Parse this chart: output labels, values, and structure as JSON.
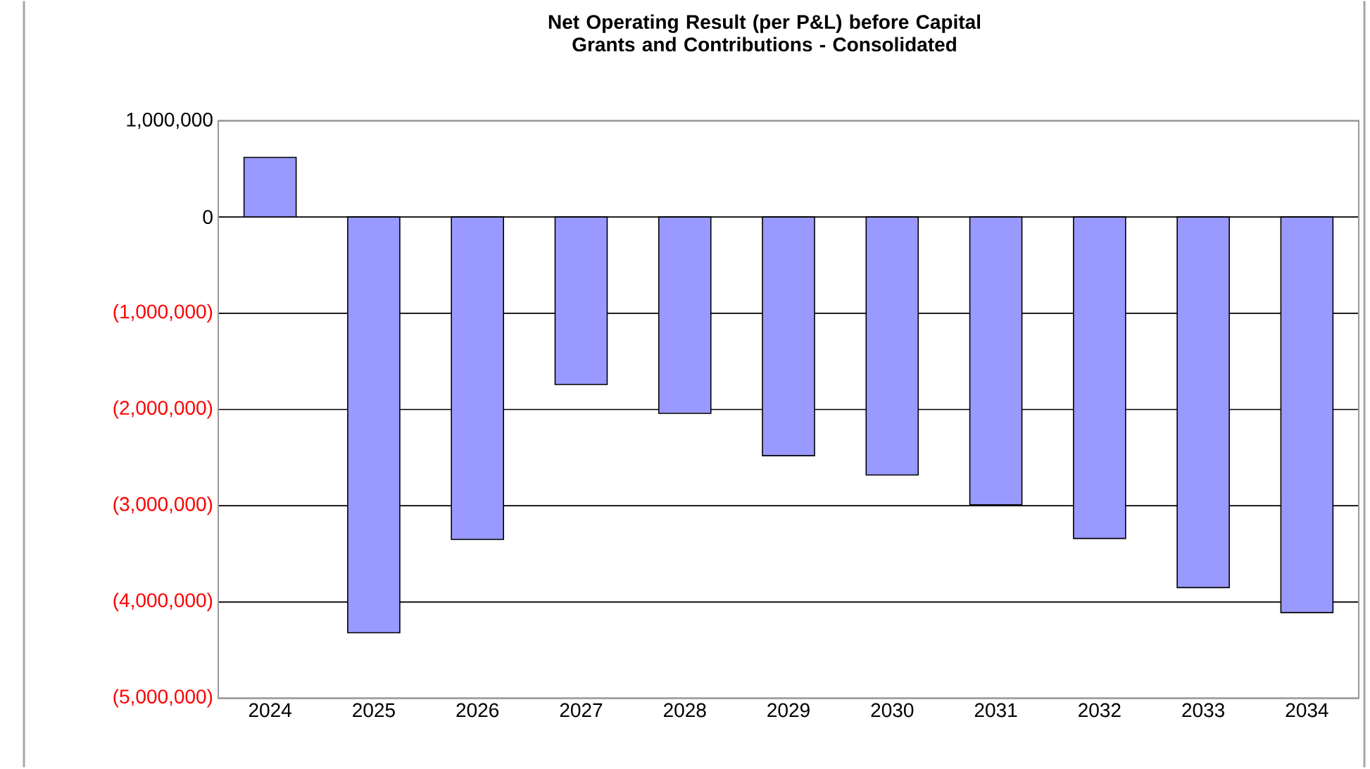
{
  "chart_data": {
    "type": "bar",
    "title": "Net Operating Result (per P&L) before Capital Grants and Contributions - Consolidated",
    "categories": [
      "2024",
      "2025",
      "2026",
      "2027",
      "2028",
      "2029",
      "2030",
      "2031",
      "2032",
      "2033",
      "2034"
    ],
    "values": [
      620000,
      -4320000,
      -3350000,
      -1740000,
      -2040000,
      -2480000,
      -2680000,
      -2990000,
      -3340000,
      -3850000,
      -4110000
    ],
    "color": "#9999ff",
    "ylim": [
      -5000000,
      1000000
    ],
    "yticks": [
      {
        "value": -5000000,
        "label": "(5,000,000)"
      },
      {
        "value": -4000000,
        "label": "(4,000,000)"
      },
      {
        "value": -3000000,
        "label": "(3,000,000)"
      },
      {
        "value": -2000000,
        "label": "(2,000,000)"
      },
      {
        "value": -1000000,
        "label": "(1,000,000)"
      },
      {
        "value": 0,
        "label": "0"
      },
      {
        "value": 1000000,
        "label": "1,000,000"
      }
    ],
    "grid": "y"
  }
}
